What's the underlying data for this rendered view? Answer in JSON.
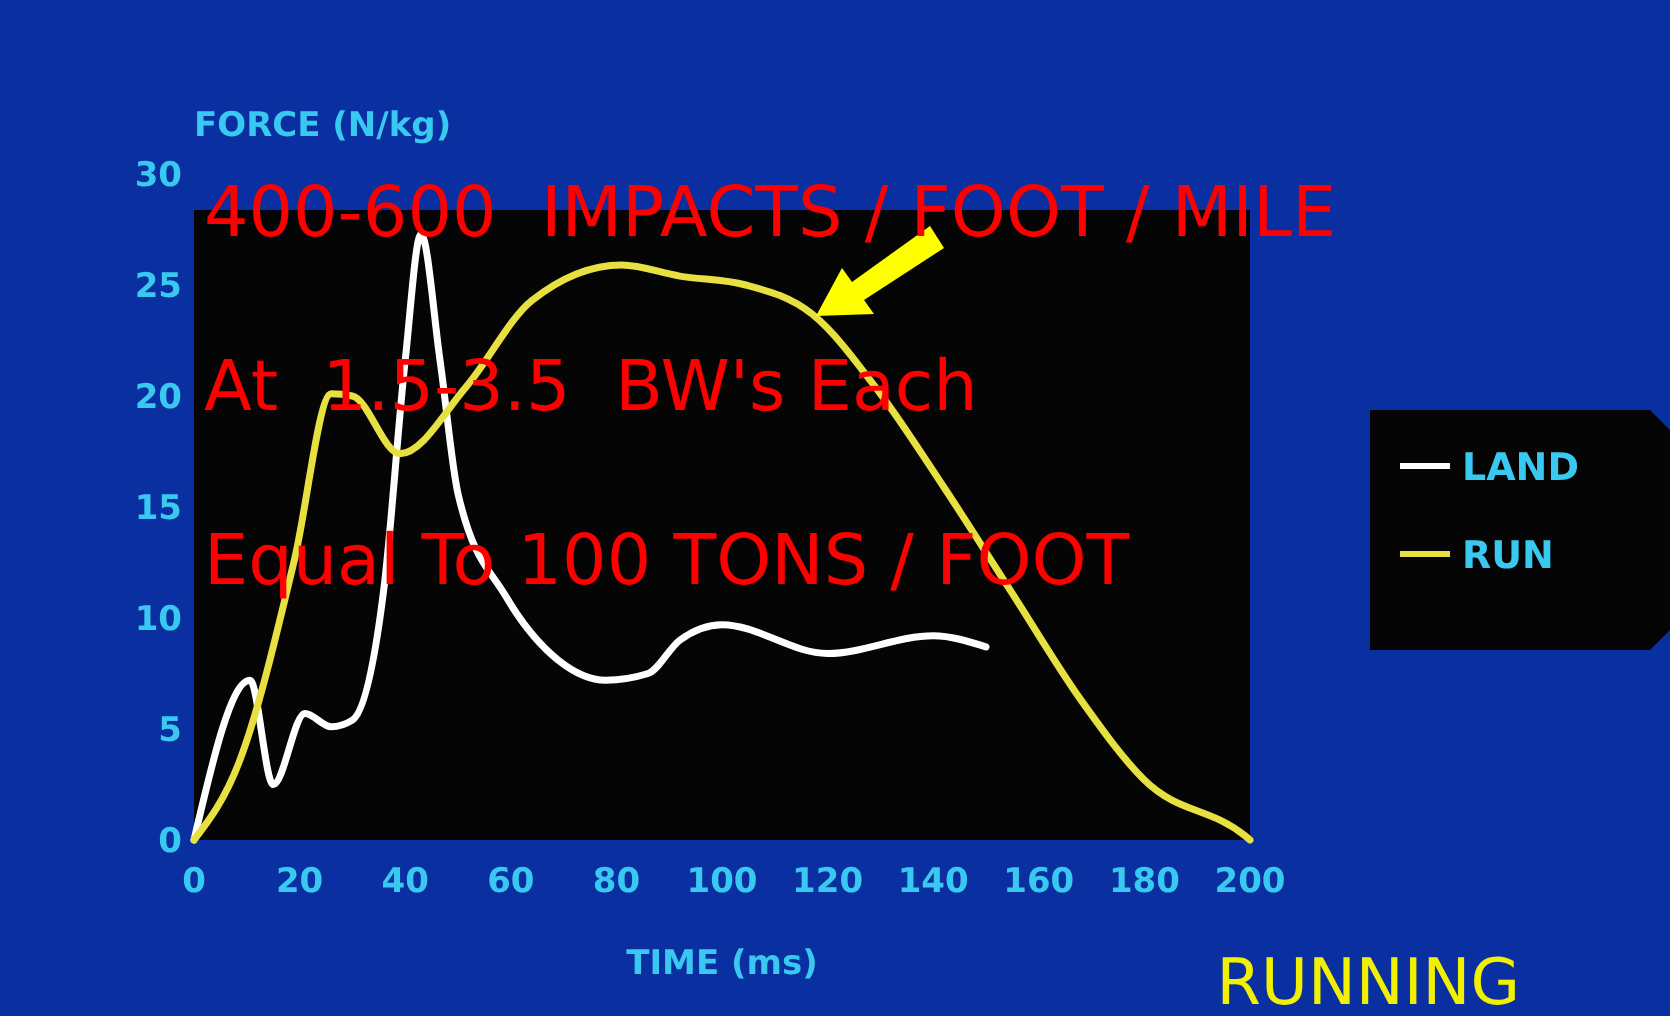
{
  "chart_data": {
    "type": "line",
    "xlabel": "TIME (ms)",
    "ylabel": "FORCE (N/kg)",
    "xlim": [
      0,
      200
    ],
    "xticks": [
      0,
      20,
      40,
      60,
      80,
      100,
      120,
      140,
      160,
      180,
      200
    ],
    "ylim": [
      0,
      30
    ],
    "yticks": [
      0,
      5,
      10,
      15,
      20,
      25,
      30
    ],
    "legend": "right",
    "grid": false,
    "series": [
      {
        "name": "LAND",
        "color": "#ffffff",
        "x": [
          0,
          10.6,
          15,
          21,
          26,
          30,
          36,
          40,
          43,
          46.6,
          50,
          59,
          69,
          78,
          86,
          92,
          100,
          120,
          140,
          150
        ],
        "values": [
          0,
          7.2,
          2.5,
          5.7,
          5.1,
          5.4,
          11.4,
          21.6,
          27.3,
          21.6,
          15.6,
          11,
          8.1,
          7.2,
          7.5,
          9,
          9.7,
          8.4,
          9.2,
          8.7
        ]
      },
      {
        "name": "RUN",
        "color": "#e8e040",
        "x": [
          0,
          8.7,
          19,
          26,
          30,
          39,
          51.5,
          64,
          81,
          92,
          104.5,
          117,
          130,
          142,
          155,
          168,
          180,
          199,
          200
        ],
        "values": [
          0,
          3.6,
          12.6,
          20.1,
          20,
          17.4,
          20.4,
          24.3,
          25.9,
          25.4,
          25,
          23.7,
          20.1,
          15.9,
          11.1,
          6.3,
          2.7,
          0.2,
          0
        ]
      }
    ],
    "annotations": [
      "400-600  IMPACTS / FOOT / MILE",
      "At  1.5-3.5  BW's Each",
      "Equal To 100 TONS / FOOT",
      "RUNNING"
    ]
  }
}
